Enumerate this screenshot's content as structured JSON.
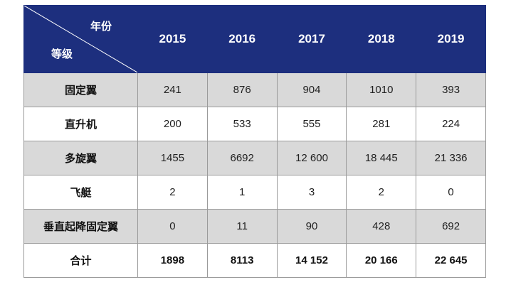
{
  "corner": {
    "top_label": "年份",
    "bottom_label": "等级"
  },
  "years": [
    "2015",
    "2016",
    "2017",
    "2018",
    "2019"
  ],
  "rows": [
    {
      "label": "固定翼",
      "values": [
        "241",
        "876",
        "904",
        "1010",
        "393"
      ]
    },
    {
      "label": "直升机",
      "values": [
        "200",
        "533",
        "555",
        "281",
        "224"
      ]
    },
    {
      "label": "多旋翼",
      "values": [
        "1455",
        "6692",
        "12 600",
        "18 445",
        "21 336"
      ]
    },
    {
      "label": "飞艇",
      "values": [
        "2",
        "1",
        "3",
        "2",
        "0"
      ]
    },
    {
      "label": "垂直起降固定翼",
      "values": [
        "0",
        "11",
        "90",
        "428",
        "692"
      ]
    },
    {
      "label": "合计",
      "values": [
        "1898",
        "8113",
        "14 152",
        "20 166",
        "22 645"
      ]
    }
  ],
  "colors": {
    "header_bg": "#1d2f7e",
    "shaded_row": "#d9d9d9",
    "border": "#9a9a9a"
  }
}
